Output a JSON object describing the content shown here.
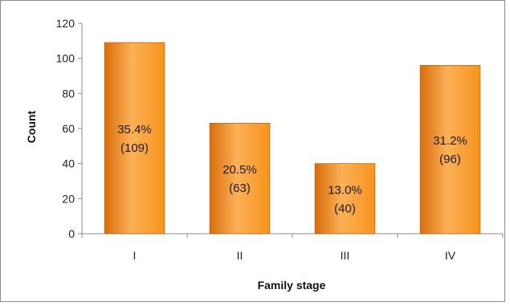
{
  "chart_data": {
    "type": "bar",
    "title": "",
    "xlabel": "Family stage",
    "ylabel": "Count",
    "categories": [
      "I",
      "II",
      "III",
      "IV"
    ],
    "values": [
      109,
      63,
      40,
      96
    ],
    "bar_labels": [
      [
        "35.4%",
        "(109)"
      ],
      [
        "20.5%",
        "(63)"
      ],
      [
        "13.0%",
        "(40)"
      ],
      [
        "31.2%",
        "(96)"
      ]
    ],
    "ylim": [
      0,
      120
    ],
    "yticks": [
      0,
      20,
      40,
      60,
      80,
      100,
      120
    ],
    "grid": false,
    "legend": "none",
    "colors": {
      "bar_light": "#fcb057",
      "bar_mid": "#f7941d",
      "bar_dark": "#d86e0c",
      "bar_edge": "#c0650f"
    }
  }
}
